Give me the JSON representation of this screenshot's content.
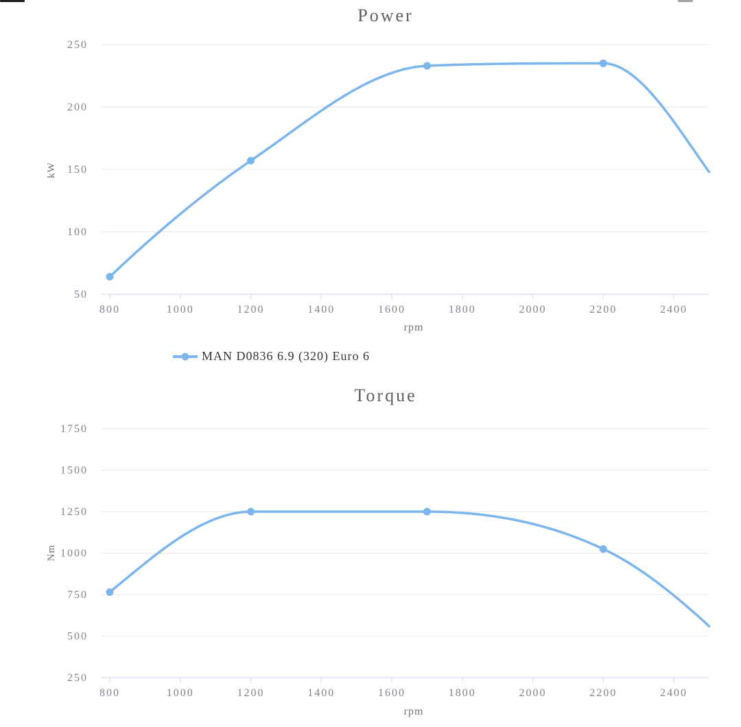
{
  "page": {
    "background": "#ffffff"
  },
  "colors": {
    "series": "#7cb5ec",
    "grid": "#e6e6e6",
    "axis_line": "#ccd6eb",
    "tick_label": "#7e828a",
    "axis_title": "#6f747c",
    "chart_title": "#5a5f66",
    "legend_text": "#333333"
  },
  "legend": {
    "label": "MAN D0836 6.9 (320) Euro 6"
  },
  "chart_data": [
    {
      "type": "line",
      "title": "Power",
      "xlabel": "rpm",
      "ylabel": "kW",
      "x_ticks": [
        800,
        1000,
        1200,
        1400,
        1600,
        1800,
        2000,
        2200,
        2400
      ],
      "y_ticks": [
        50,
        100,
        150,
        200,
        250
      ],
      "xlim": [
        800,
        2500
      ],
      "ylim": [
        50,
        250
      ],
      "grid": true,
      "legend_position": "bottom",
      "series": [
        {
          "name": "MAN D0836 6.9 (320) Euro 6",
          "color": "#7cb5ec",
          "smooth": true,
          "points": [
            [
              800,
              64
            ],
            [
              1200,
              157
            ],
            [
              1700,
              233
            ],
            [
              2200,
              235
            ],
            [
              2500,
              148
            ]
          ],
          "markers_at": [
            800,
            1200,
            1700,
            2200
          ]
        }
      ]
    },
    {
      "type": "line",
      "title": "Torque",
      "xlabel": "rpm",
      "ylabel": "Nm",
      "x_ticks": [
        800,
        1000,
        1200,
        1400,
        1600,
        1800,
        2000,
        2200,
        2400
      ],
      "y_ticks": [
        250,
        500,
        750,
        1000,
        1250,
        1500,
        1750
      ],
      "xlim": [
        800,
        2500
      ],
      "ylim": [
        250,
        1750
      ],
      "grid": true,
      "legend_position": "none",
      "series": [
        {
          "name": "MAN D0836 6.9 (320) Euro 6",
          "color": "#7cb5ec",
          "smooth": true,
          "points": [
            [
              800,
              765
            ],
            [
              1200,
              1250
            ],
            [
              1700,
              1250
            ],
            [
              2200,
              1025
            ],
            [
              2500,
              560
            ]
          ],
          "markers_at": [
            800,
            1200,
            1700,
            2200
          ]
        }
      ]
    }
  ]
}
